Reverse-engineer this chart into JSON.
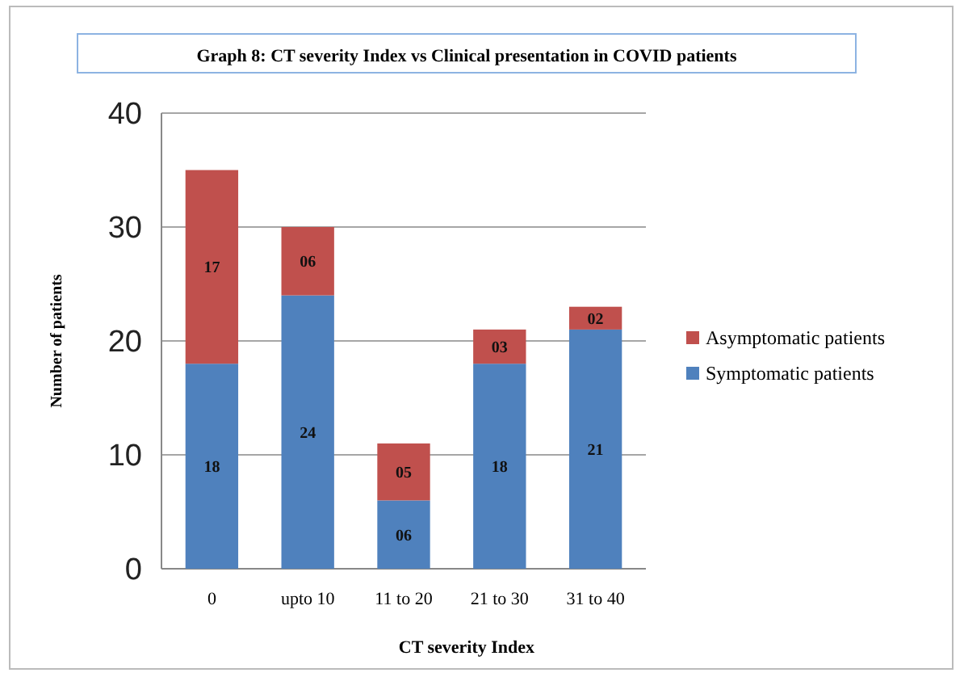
{
  "chart_data": {
    "type": "bar",
    "title": "Graph 8: CT severity Index vs Clinical presentation in COVID patients",
    "xlabel": "CT severity Index",
    "ylabel": "Number of patients",
    "categories": [
      "0",
      "upto 10",
      "11 to 20",
      "21 to 30",
      "31 to 40"
    ],
    "stacked": true,
    "ylim": [
      0,
      40
    ],
    "yticks": [
      0,
      10,
      20,
      30,
      40
    ],
    "grid": "y",
    "legend": "right",
    "series": [
      {
        "name": "Symptomatic patients",
        "color": "#4f81bd",
        "values": [
          18,
          24,
          6,
          18,
          21
        ],
        "value_labels": [
          "18",
          "24",
          "06",
          "18",
          "21"
        ]
      },
      {
        "name": "Asymptomatic patients",
        "color": "#c0504d",
        "values": [
          17,
          6,
          5,
          3,
          2
        ],
        "value_labels": [
          "17",
          "06",
          "05",
          "03",
          "02"
        ]
      }
    ]
  }
}
